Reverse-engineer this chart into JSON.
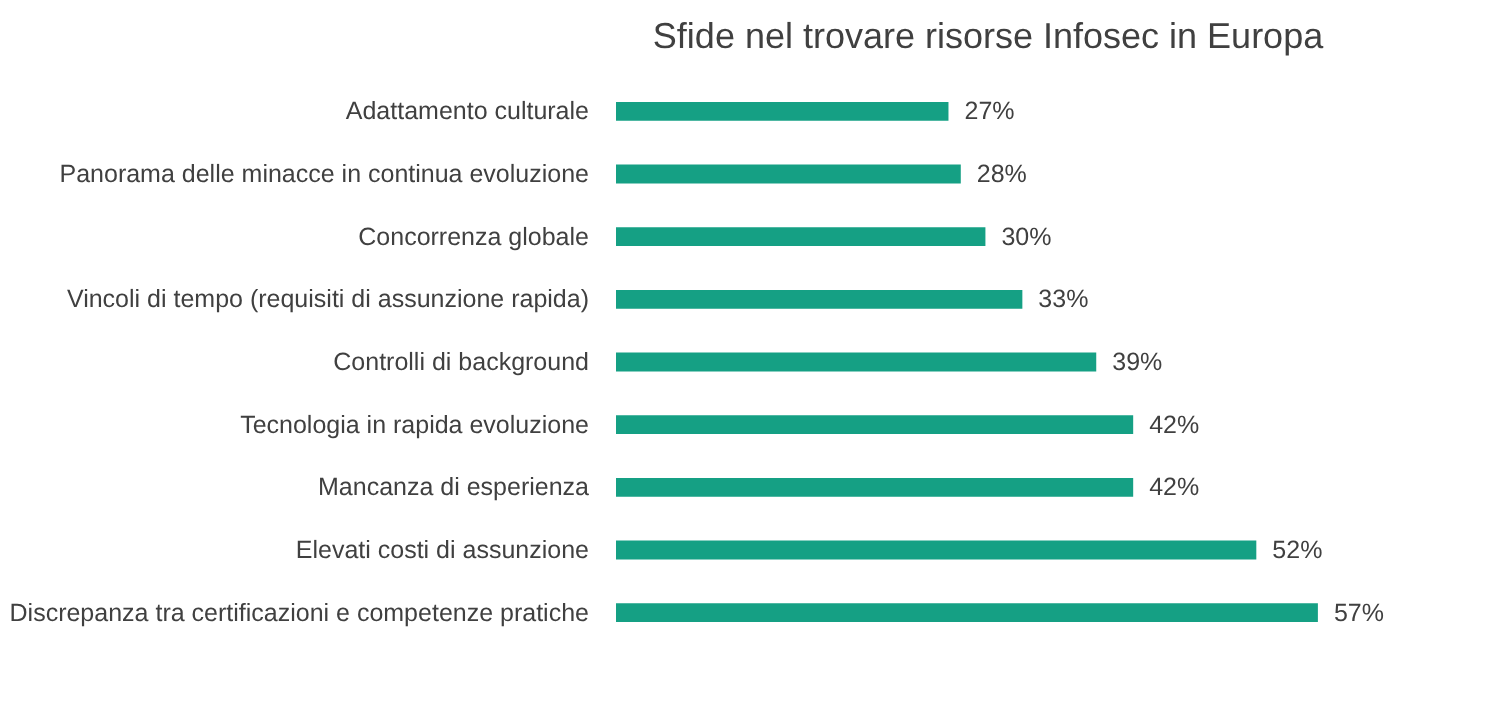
{
  "chart_data": {
    "type": "bar",
    "orientation": "horizontal",
    "title": "Sfide nel trovare risorse Infosec in Europa",
    "categories": [
      "Adattamento culturale",
      "Panorama delle minacce in continua evoluzione",
      "Concorrenza globale",
      "Vincoli di tempo (requisiti di assunzione rapida)",
      "Controlli di background",
      "Tecnologia in rapida evoluzione",
      "Mancanza di esperienza",
      "Elevati costi di assunzione",
      "Discrepanza tra certificazioni e competenze pratiche"
    ],
    "values": [
      27,
      28,
      30,
      33,
      39,
      42,
      42,
      52,
      57
    ],
    "value_labels": [
      "27%",
      "28%",
      "30%",
      "33%",
      "39%",
      "42%",
      "42%",
      "52%",
      "57%"
    ],
    "color": "#15a084",
    "grid": false
  }
}
